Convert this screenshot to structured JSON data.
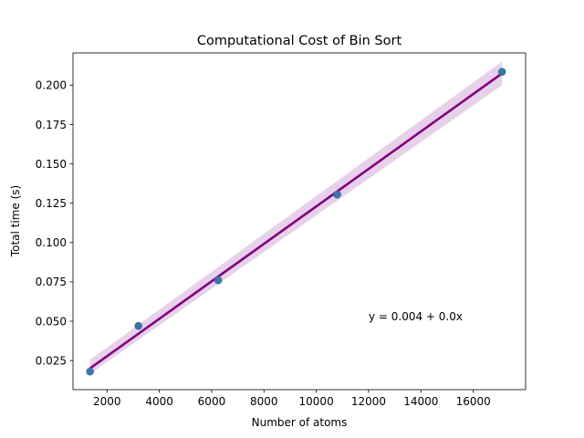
{
  "chart_data": {
    "type": "scatter",
    "title": "Computational Cost of Bin Sort",
    "xlabel": "Number of atoms",
    "ylabel": "Total time (s)",
    "xlim": [
      700,
      18000
    ],
    "ylim": [
      0.0065,
      0.2205
    ],
    "xticks": [
      2000,
      4000,
      6000,
      8000,
      10000,
      12000,
      14000,
      16000
    ],
    "yticks": [
      0.025,
      0.05,
      0.075,
      0.1,
      0.125,
      0.15,
      0.175,
      0.2
    ],
    "xtick_labels": [
      "2000",
      "4000",
      "6000",
      "8000",
      "10000",
      "12000",
      "14000",
      "16000"
    ],
    "ytick_labels": [
      "0.025",
      "0.050",
      "0.075",
      "0.100",
      "0.125",
      "0.150",
      "0.175",
      "0.200"
    ],
    "grid": false,
    "points": [
      {
        "x": 1350,
        "y": 0.018
      },
      {
        "x": 3200,
        "y": 0.047
      },
      {
        "x": 6250,
        "y": 0.076
      },
      {
        "x": 10800,
        "y": 0.1305
      },
      {
        "x": 17100,
        "y": 0.2085
      }
    ],
    "fit": {
      "x": [
        1350,
        17100
      ],
      "y": [
        0.02,
        0.2075
      ],
      "ci_lower": [
        0.0165,
        0.2
      ],
      "ci_upper": [
        0.0255,
        0.215
      ]
    },
    "annotation": {
      "text": "y = 0.004 + 0.0x",
      "x": 12000,
      "y": 0.0505
    },
    "colors": {
      "points": "#3b75a5",
      "fit_line": "#800080",
      "ci_band": "#e3c9e6"
    }
  }
}
